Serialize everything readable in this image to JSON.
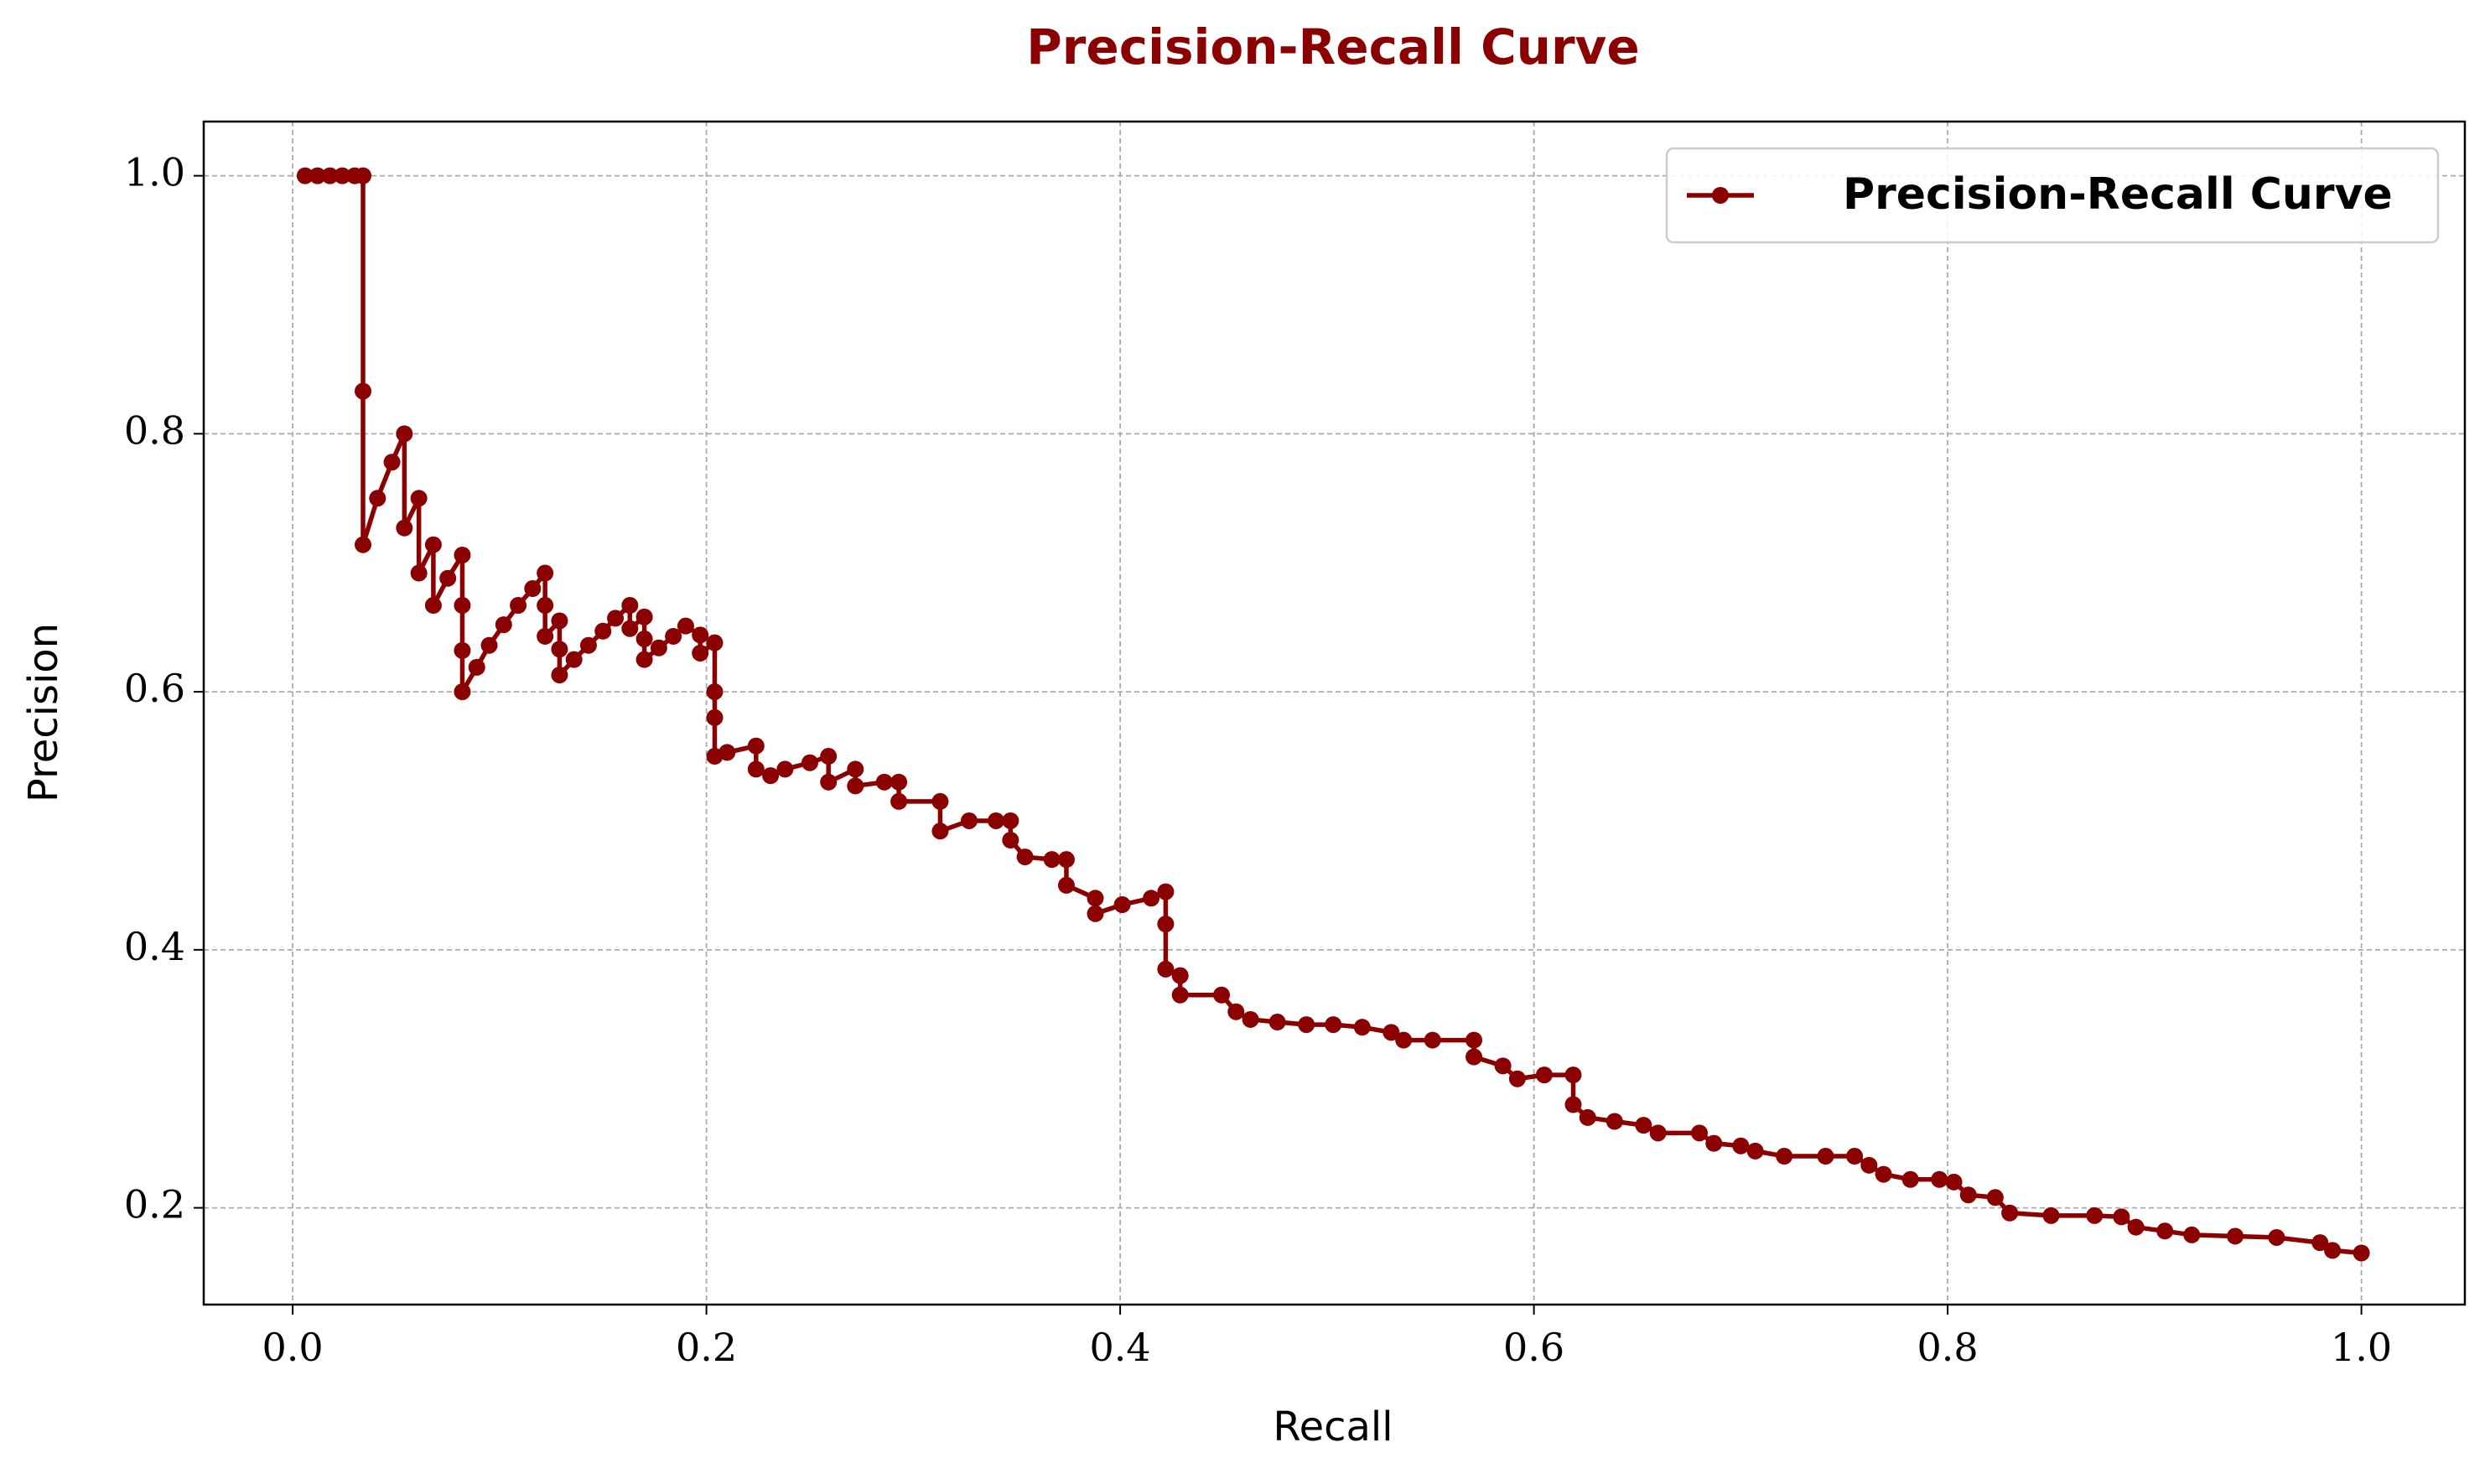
{
  "chart_data": {
    "type": "line",
    "title": "Precision-Recall Curve",
    "xlabel": "Recall",
    "ylabel": "Precision",
    "x": [
      0.006,
      0.012,
      0.018,
      0.024,
      0.03,
      0.034,
      0.034,
      0.034,
      0.041,
      0.048,
      0.054,
      0.054,
      0.061,
      0.061,
      0.068,
      0.068,
      0.075,
      0.082,
      0.082,
      0.082,
      0.082,
      0.089,
      0.095,
      0.102,
      0.109,
      0.116,
      0.122,
      0.122,
      0.122,
      0.129,
      0.129,
      0.129,
      0.136,
      0.143,
      0.15,
      0.156,
      0.163,
      0.163,
      0.17,
      0.17,
      0.17,
      0.177,
      0.184,
      0.19,
      0.197,
      0.197,
      0.204,
      0.204,
      0.204,
      0.204,
      0.21,
      0.224,
      0.224,
      0.231,
      0.238,
      0.25,
      0.259,
      0.259,
      0.272,
      0.272,
      0.286,
      0.293,
      0.293,
      0.313,
      0.313,
      0.327,
      0.34,
      0.347,
      0.347,
      0.354,
      0.367,
      0.374,
      0.374,
      0.388,
      0.388,
      0.401,
      0.415,
      0.422,
      0.422,
      0.422,
      0.429,
      0.429,
      0.449,
      0.456,
      0.463,
      0.476,
      0.49,
      0.503,
      0.517,
      0.531,
      0.537,
      0.551,
      0.571,
      0.571,
      0.585,
      0.592,
      0.605,
      0.619,
      0.619,
      0.626,
      0.639,
      0.653,
      0.66,
      0.68,
      0.687,
      0.7,
      0.707,
      0.721,
      0.741,
      0.755,
      0.762,
      0.769,
      0.782,
      0.796,
      0.803,
      0.81,
      0.823,
      0.83,
      0.85,
      0.871,
      0.884,
      0.891,
      0.905,
      0.918,
      0.939,
      0.959,
      0.98,
      0.986,
      1.0
    ],
    "series": [
      {
        "name": "Precision-Recall Curve",
        "color": "#8b0000",
        "values": [
          1.0,
          1.0,
          1.0,
          1.0,
          1.0,
          1.0,
          0.833,
          0.714,
          0.75,
          0.778,
          0.8,
          0.727,
          0.75,
          0.692,
          0.714,
          0.667,
          0.688,
          0.706,
          0.667,
          0.632,
          0.6,
          0.619,
          0.636,
          0.652,
          0.667,
          0.68,
          0.692,
          0.667,
          0.643,
          0.655,
          0.633,
          0.613,
          0.625,
          0.636,
          0.647,
          0.657,
          0.667,
          0.649,
          0.658,
          0.641,
          0.625,
          0.634,
          0.643,
          0.651,
          0.644,
          0.63,
          0.638,
          0.6,
          0.58,
          0.55,
          0.553,
          0.558,
          0.54,
          0.535,
          0.54,
          0.545,
          0.55,
          0.53,
          0.54,
          0.527,
          0.53,
          0.53,
          0.515,
          0.515,
          0.492,
          0.5,
          0.5,
          0.5,
          0.485,
          0.472,
          0.47,
          0.47,
          0.45,
          0.44,
          0.428,
          0.435,
          0.44,
          0.445,
          0.42,
          0.385,
          0.38,
          0.365,
          0.365,
          0.352,
          0.346,
          0.344,
          0.342,
          0.342,
          0.34,
          0.336,
          0.33,
          0.33,
          0.33,
          0.317,
          0.31,
          0.3,
          0.303,
          0.303,
          0.28,
          0.27,
          0.267,
          0.264,
          0.258,
          0.258,
          0.25,
          0.248,
          0.244,
          0.24,
          0.24,
          0.24,
          0.233,
          0.226,
          0.222,
          0.222,
          0.22,
          0.21,
          0.208,
          0.196,
          0.194,
          0.194,
          0.193,
          0.185,
          0.182,
          0.179,
          0.178,
          0.177,
          0.173,
          0.167,
          0.165
        ]
      }
    ],
    "xlim": [
      -0.043,
      1.05
    ],
    "ylim": [
      0.125,
      1.042
    ],
    "xticks": [
      {
        "value": 0,
        "label": "0.0"
      },
      0.2,
      0.4,
      0.6,
      0.8,
      {
        "value": 1,
        "label": "1.0"
      }
    ],
    "yticks": [
      0.2,
      0.4,
      0.6,
      0.8,
      {
        "value": 1,
        "label": "1.0"
      }
    ],
    "grid": true,
    "legend": "upper right"
  }
}
